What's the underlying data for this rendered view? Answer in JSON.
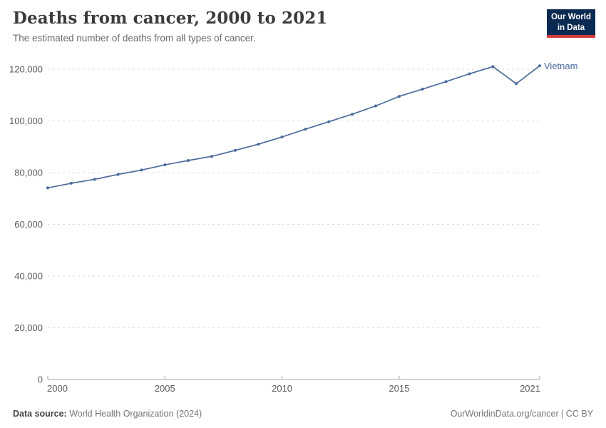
{
  "header": {
    "title": "Deaths from cancer, 2000 to 2021",
    "subtitle": "The estimated number of deaths from all types of cancer.",
    "logo": {
      "line1": "Our World",
      "line2": "in Data"
    }
  },
  "chart_data": {
    "type": "line",
    "title": "Deaths from cancer, 2000 to 2021",
    "xlabel": "",
    "ylabel": "",
    "grid": true,
    "legend_position": "end-of-line-label",
    "x": [
      2000,
      2001,
      2002,
      2003,
      2004,
      2005,
      2006,
      2007,
      2008,
      2009,
      2010,
      2011,
      2012,
      2013,
      2014,
      2015,
      2016,
      2017,
      2018,
      2019,
      2020,
      2021
    ],
    "series": [
      {
        "name": "Vietnam",
        "color": "#4C6A9C",
        "values": [
          74100,
          75900,
          77400,
          79300,
          81000,
          83000,
          84700,
          86300,
          88600,
          91000,
          93800,
          96800,
          99700,
          102600,
          105800,
          109500,
          112300,
          115200,
          118200,
          121000,
          114400,
          121300
        ]
      }
    ],
    "x_ticks": [
      2000,
      2005,
      2010,
      2015,
      2021
    ],
    "y_ticks": [
      0,
      20000,
      40000,
      60000,
      80000,
      100000,
      120000
    ],
    "xlim": [
      2000,
      2021
    ],
    "ylim": [
      0,
      120000
    ],
    "colors": {
      "line": "#4C6A9C",
      "gridline": "#dddddd",
      "axis": "#a5a5a5",
      "tick_text": "#5b5b5b"
    }
  },
  "footer": {
    "source_label": "Data source:",
    "source_text": " World Health Organization (2024)",
    "credit": "OurWorldinData.org/cancer | CC BY"
  }
}
